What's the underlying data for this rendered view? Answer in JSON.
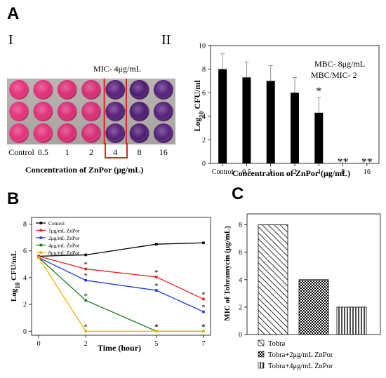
{
  "panels": {
    "A": "A",
    "B": "B",
    "C": "C"
  },
  "sub_panels": {
    "I": "I",
    "II": "II"
  },
  "plate": {
    "mic_annotation": "MIC- 4μg/mL",
    "columns": [
      "Control",
      "0.5",
      "1",
      "2",
      "4",
      "8",
      "16"
    ],
    "column_colors": [
      "#e5307a",
      "#e22f78",
      "#dc2c74",
      "#d62d75",
      "#5a1f78",
      "#4e1c72",
      "#55207a"
    ],
    "highlight_color": "#e8201c",
    "xlabel": "Concentration of ZnPor (μg/mL)"
  },
  "chart_data": [
    {
      "type": "bar",
      "panel": "A-II",
      "categories": [
        "Control",
        "0.5",
        "1",
        "2",
        "4",
        "8",
        "16"
      ],
      "values": [
        8.0,
        7.3,
        7.0,
        6.0,
        4.3,
        0,
        0
      ],
      "errors": [
        1.3,
        1.3,
        1.3,
        1.3,
        1.3,
        0,
        0
      ],
      "significance": [
        "",
        "",
        "",
        "",
        "*",
        "**",
        "**"
      ],
      "ylabel": "Log10 CFU/ml",
      "xlabel": "Concentration of ZnPor (μg/mL)",
      "ylim": [
        0,
        10
      ],
      "yticks": [
        "0",
        "2",
        "4",
        "6",
        "8",
        "10"
      ],
      "annotations": [
        "MBC- 8μg/mL",
        "MBC/MIC- 2"
      ],
      "bar_color": "#000000"
    },
    {
      "type": "line",
      "panel": "B",
      "x": [
        0,
        2,
        5,
        7
      ],
      "xticks": [
        "0",
        "2",
        "5",
        "7"
      ],
      "xlim": [
        -0.3,
        7.3
      ],
      "ylim": [
        -0.3,
        8.5
      ],
      "yticks": [
        "0",
        "2",
        "4",
        "6",
        "8"
      ],
      "xlabel": "Time (hour)",
      "ylabel": "Log10 CFU/mL",
      "legend_position": "top-left",
      "series": [
        {
          "name": "Control",
          "color": "#000000",
          "values": [
            5.6,
            5.7,
            6.5,
            6.6
          ],
          "stars": [
            false,
            false,
            false,
            false
          ]
        },
        {
          "name": "1μg/mL ZnPor",
          "color": "#e8201c",
          "values": [
            5.6,
            4.65,
            4.05,
            2.4
          ],
          "stars": [
            false,
            true,
            true,
            true
          ]
        },
        {
          "name": "2μg/mL ZnPor",
          "color": "#1f3bd8",
          "values": [
            5.5,
            3.8,
            3.05,
            1.45
          ],
          "stars": [
            false,
            true,
            true,
            true
          ]
        },
        {
          "name": "4μg/mL ZnPor",
          "color": "#1a7a1a",
          "values": [
            5.5,
            2.3,
            0,
            0
          ],
          "stars": [
            false,
            true,
            true,
            true
          ]
        },
        {
          "name": "8μg/mL ZnPor",
          "color": "#f0b400",
          "values": [
            5.5,
            0,
            0,
            0
          ],
          "stars": [
            false,
            true,
            true,
            true
          ]
        }
      ]
    },
    {
      "type": "bar",
      "panel": "C",
      "categories": [
        "Tobra",
        "Tobra+2μg/mL ZnPor",
        "Tobra+4μg/mL ZnPor"
      ],
      "values": [
        8,
        4,
        2
      ],
      "patterns": [
        "diagonal",
        "crosshatch",
        "vertical"
      ],
      "ylabel": "MIC of Tobramycin (μg/mL)",
      "ylim": [
        0,
        8.8
      ],
      "yticks": [
        "0",
        "2",
        "4",
        "6",
        "8"
      ],
      "legend_position": "bottom"
    }
  ]
}
